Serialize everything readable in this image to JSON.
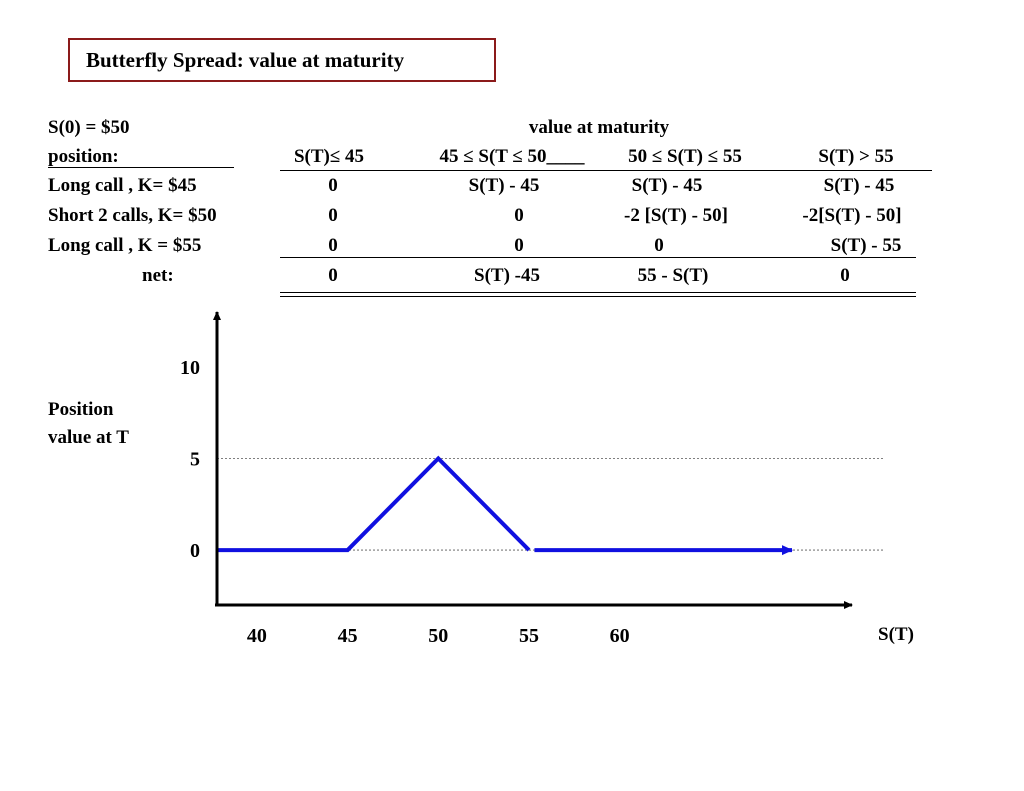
{
  "title": "Butterfly Spread: value at maturity",
  "table": {
    "s0": "S(0) = $50",
    "header_group": "value at maturity",
    "position_label": "position:",
    "columns": [
      "S(T)≤ 45",
      "45 ≤  S(T ≤  50____",
      "50 ≤ S(T) ≤  55",
      "S(T) > 55"
    ],
    "rows": [
      {
        "label": "Long call , K= $45",
        "cells": [
          "0",
          "S(T) - 45",
          "S(T) - 45",
          "S(T) - 45"
        ]
      },
      {
        "label": "Short 2 calls, K= $50",
        "cells": [
          "0",
          "0",
          "-2 [S(T) - 50]",
          "-2[S(T) - 50]"
        ]
      },
      {
        "label": "Long call , K = $55",
        "cells": [
          "0",
          "0",
          "0",
          "S(T) - 55"
        ]
      }
    ],
    "net": {
      "label": "net:",
      "cells": [
        "0",
        "S(T) -45",
        "55 - S(T)",
        "0"
      ]
    }
  },
  "chart_data": {
    "type": "line",
    "ylabel": "Position\nvalue at T",
    "xlabel": "S(T)",
    "x_ticks": [
      40,
      45,
      50,
      55,
      60
    ],
    "y_ticks": [
      0,
      5,
      10
    ],
    "xlim": [
      37.8,
      73.8
    ],
    "ylim": [
      -3,
      13
    ],
    "series": [
      {
        "color": "#1010e0",
        "x": [
          37.8,
          45,
          50,
          55
        ],
        "y": [
          0,
          0,
          5,
          0
        ]
      },
      {
        "color": "#1010e0",
        "x": [
          55.3,
          69.5
        ],
        "y": [
          0,
          0
        ],
        "arrow": true
      }
    ],
    "reference_lines": [
      {
        "y": 5,
        "style": "dotted"
      },
      {
        "y": 0,
        "style": "dotted"
      }
    ]
  }
}
